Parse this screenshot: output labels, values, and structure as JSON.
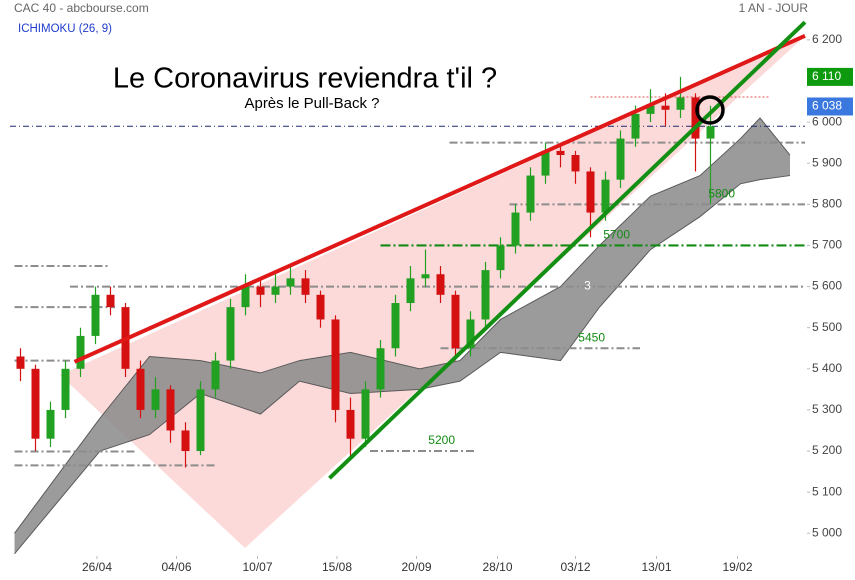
{
  "chart_data": {
    "type": "candlestick",
    "source": "CAC 40 - abcbourse.com",
    "period": "1 AN - JOUR",
    "indicator": "ICHIMOKU (26, 9)",
    "title": "Le Coronavirus reviendra t'il ?",
    "subtitle": "Après le Pull-Back ?",
    "xlim": [
      0,
      53
    ],
    "ylim": [
      4952,
      6297
    ],
    "xticks": [
      {
        "value": 5.8,
        "label": "26/04"
      },
      {
        "value": 11.1,
        "label": "04/06"
      },
      {
        "value": 16.5,
        "label": "10/07"
      },
      {
        "value": 21.8,
        "label": "15/08"
      },
      {
        "value": 27.1,
        "label": "20/09"
      },
      {
        "value": 32.5,
        "label": "28/10"
      },
      {
        "value": 37.7,
        "label": "03/12"
      },
      {
        "value": 43.1,
        "label": "13/01"
      },
      {
        "value": 48.5,
        "label": "19/02"
      }
    ],
    "yticks": [
      {
        "value": 5000,
        "label": "5 000"
      },
      {
        "value": 5100,
        "label": "5 100"
      },
      {
        "value": 5200,
        "label": "5 200"
      },
      {
        "value": 5300,
        "label": "5 300"
      },
      {
        "value": 5400,
        "label": "5 400"
      },
      {
        "value": 5500,
        "label": "5 500"
      },
      {
        "value": 5600,
        "label": "5 600"
      },
      {
        "value": 5700,
        "label": "5 700"
      },
      {
        "value": 5800,
        "label": "5 800"
      },
      {
        "value": 5900,
        "label": "5 900"
      },
      {
        "value": 6000,
        "label": "6 000"
      },
      {
        "value": 6100,
        "label": "6 100"
      },
      {
        "value": 6200,
        "label": "6 200"
      }
    ],
    "up_color": "#22a022",
    "down_color": "#d41010",
    "x": [
      0.7,
      1.7,
      2.7,
      3.7,
      4.7,
      5.7,
      6.7,
      7.7,
      8.7,
      9.7,
      10.7,
      11.7,
      12.7,
      13.7,
      14.7,
      15.7,
      16.7,
      17.7,
      18.7,
      19.7,
      20.7,
      21.7,
      22.7,
      23.7,
      24.7,
      25.7,
      26.7,
      27.7,
      28.7,
      29.7,
      30.7,
      31.7,
      32.7,
      33.7,
      34.7,
      35.7,
      36.7,
      37.7,
      38.7,
      39.7,
      40.7,
      41.7,
      42.7,
      43.7,
      44.7,
      45.7,
      46.7
    ],
    "open": [
      5430,
      5400,
      5230,
      5300,
      5400,
      5480,
      5580,
      5550,
      5400,
      5300,
      5350,
      5250,
      5200,
      5350,
      5420,
      5550,
      5600,
      5580,
      5600,
      5620,
      5580,
      5520,
      5300,
      5230,
      5350,
      5450,
      5560,
      5620,
      5630,
      5580,
      5450,
      5520,
      5640,
      5700,
      5780,
      5870,
      5930,
      5920,
      5880,
      5780,
      5860,
      5960,
      6020,
      6040,
      6030,
      6060,
      5960
    ],
    "high": [
      5450,
      5410,
      5320,
      5420,
      5500,
      5600,
      5600,
      5560,
      5420,
      5380,
      5360,
      5270,
      5370,
      5440,
      5570,
      5630,
      5620,
      5630,
      5650,
      5640,
      5590,
      5530,
      5330,
      5370,
      5470,
      5580,
      5650,
      5690,
      5650,
      5590,
      5540,
      5660,
      5720,
      5800,
      5890,
      5950,
      5950,
      5930,
      5890,
      5880,
      5980,
      6040,
      6080,
      6070,
      6110,
      6070,
      6040
    ],
    "low": [
      5370,
      5200,
      5210,
      5280,
      5380,
      5460,
      5530,
      5380,
      5280,
      5280,
      5220,
      5160,
      5190,
      5330,
      5400,
      5530,
      5550,
      5560,
      5580,
      5560,
      5500,
      5270,
      5180,
      5210,
      5330,
      5430,
      5540,
      5600,
      5560,
      5420,
      5430,
      5500,
      5620,
      5680,
      5760,
      5850,
      5890,
      5850,
      5720,
      5760,
      5840,
      5940,
      6000,
      5990,
      6010,
      5880,
      5800
    ],
    "close": [
      5400,
      5230,
      5300,
      5400,
      5480,
      5580,
      5550,
      5400,
      5300,
      5350,
      5250,
      5200,
      5350,
      5420,
      5550,
      5600,
      5580,
      5600,
      5620,
      5580,
      5520,
      5300,
      5230,
      5350,
      5450,
      5560,
      5620,
      5630,
      5580,
      5450,
      5520,
      5640,
      5700,
      5780,
      5870,
      5930,
      5920,
      5880,
      5780,
      5860,
      5960,
      6020,
      6040,
      6030,
      6060,
      5960,
      5990
    ],
    "cloud": {
      "color": "#8a8a8a",
      "x": [
        0.3,
        6,
        9.3,
        12.7,
        16.7,
        19.3,
        22.7,
        27.3,
        30,
        32.7,
        36.7,
        39.3,
        42.7,
        46,
        48.7,
        50,
        52
      ],
      "span_a": [
        5000,
        5280,
        5430,
        5420,
        5390,
        5420,
        5440,
        5400,
        5420,
        5520,
        5600,
        5700,
        5820,
        5870,
        5960,
        6010,
        5920
      ],
      "span_b": [
        4950,
        5200,
        5240,
        5340,
        5290,
        5370,
        5340,
        5350,
        5370,
        5440,
        5420,
        5550,
        5690,
        5770,
        5850,
        5860,
        5870
      ]
    },
    "trendlines": [
      {
        "color": "#e01818",
        "x": [
          4.3,
          53
        ],
        "y": [
          5417,
          6210
        ]
      },
      {
        "color": "#139013",
        "x": [
          21.3,
          53
        ],
        "y": [
          5134,
          6243
        ]
      }
    ],
    "levels": [
      {
        "value": 5650,
        "from": 0.3,
        "to": 6.7,
        "style": "gray"
      },
      {
        "value": 5550,
        "from": 0.3,
        "to": 7,
        "style": "gray"
      },
      {
        "value": 5420,
        "from": 0.3,
        "to": 4,
        "style": "gray"
      },
      {
        "value": 5600,
        "from": 4,
        "to": 53,
        "style": "gray"
      },
      {
        "value": 5950,
        "from": 29.3,
        "to": 53,
        "style": "gray"
      },
      {
        "value": 5800,
        "from": 33.3,
        "to": 53,
        "style": "gray",
        "labeled": true
      },
      {
        "value": 5700,
        "from": 24.7,
        "to": 53,
        "style": "green",
        "labeled": true
      },
      {
        "value": 5450,
        "from": 28.7,
        "to": 42,
        "style": "gray",
        "labeled": true
      },
      {
        "value": 5200,
        "from": 24,
        "to": 31,
        "style": "gray",
        "labeled": true
      },
      {
        "value": 5199,
        "from": 0.3,
        "to": 8.3,
        "style": "gray"
      },
      {
        "value": 5165,
        "from": 0.3,
        "to": 13.7,
        "style": "gray"
      },
      {
        "value": 5990,
        "from": 0,
        "to": 53,
        "style": "navy"
      },
      {
        "value": 6061,
        "from": 38.7,
        "to": 50.7,
        "style": "red"
      }
    ],
    "price_tags": [
      {
        "value": 6110,
        "label": "6 110",
        "color": "#0e9a0e"
      },
      {
        "value": 6038,
        "label": "6 038",
        "color": "#3a78e0"
      }
    ],
    "annotations": [
      {
        "text": "3",
        "x": 38.5,
        "y": 5600
      }
    ]
  }
}
